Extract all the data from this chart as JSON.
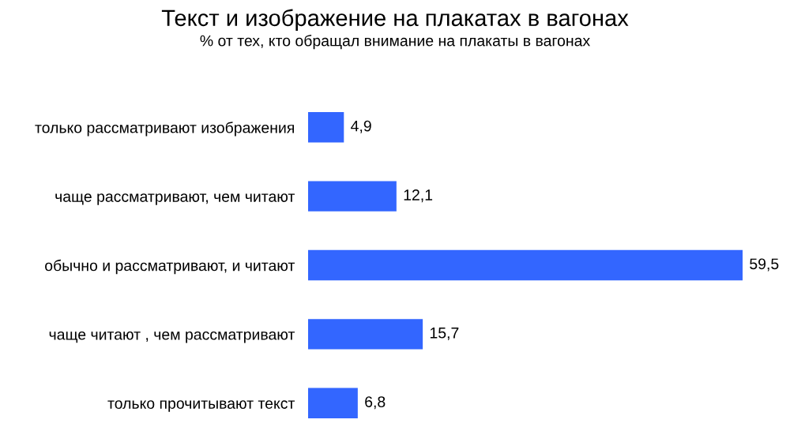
{
  "chart_data": {
    "type": "bar",
    "orientation": "horizontal",
    "title": "Текст и изображение на плакатах в вагонах",
    "subtitle": "% от тех, кто обращал внимание на плакаты в вагонах",
    "categories": [
      "только рассматривают изображения",
      "чаще рассматривают, чем читают",
      "обычно и рассматривают, и читают",
      "чаще читают , чем рассматривают",
      "только прочитывают текст"
    ],
    "values": [
      4.9,
      12.1,
      59.5,
      15.7,
      6.8
    ],
    "value_labels": [
      "4,9",
      "12,1",
      "59,5",
      "15,7",
      "6,8"
    ],
    "color": "#3366ff",
    "grid": false,
    "legend": false
  }
}
